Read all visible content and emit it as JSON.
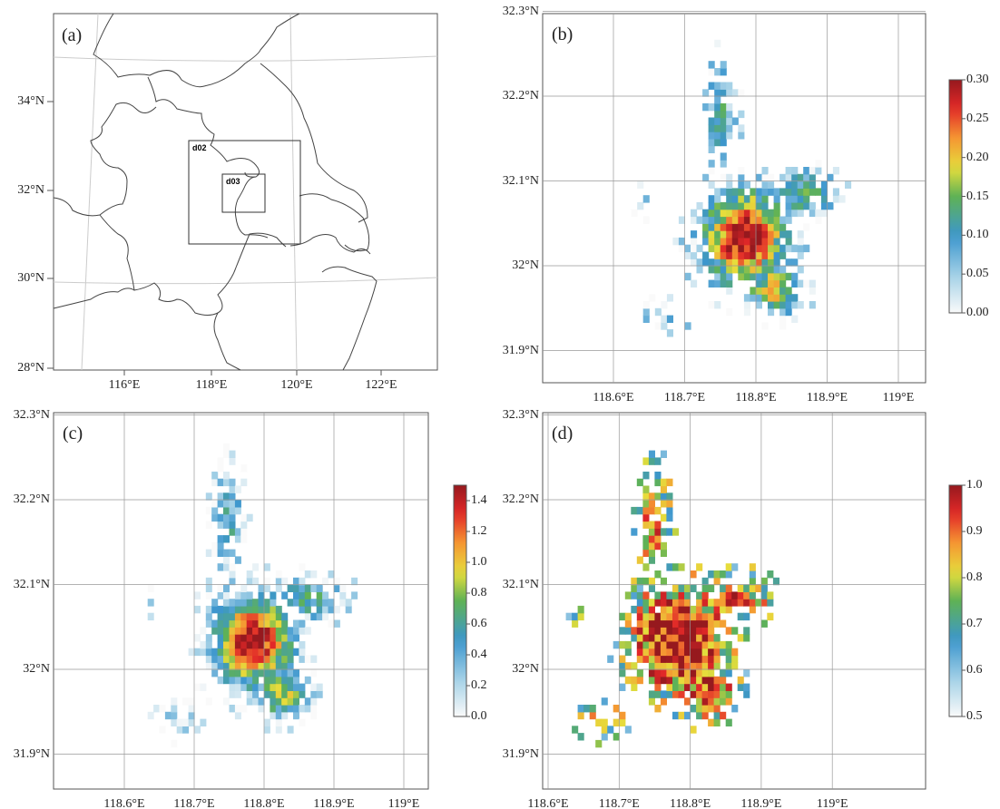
{
  "chart_data": [
    {
      "panel": "(a)",
      "type": "map",
      "title": "(a)",
      "lat_ticks": [
        "34°N",
        "32°N",
        "30°N",
        "28°N"
      ],
      "lon_ticks": [
        "116°E",
        "118°E",
        "120°E",
        "122°E"
      ],
      "domains": [
        "d02",
        "d03"
      ]
    },
    {
      "panel": "(b)",
      "type": "heatmap",
      "title": "(b)",
      "lat_ticks": [
        "32.3°N",
        "32.2°N",
        "32.1°N",
        "32°N",
        "31.9°N"
      ],
      "lon_ticks": [
        "118.6°E",
        "118.7°E",
        "118.8°E",
        "118.9°E",
        "119°E"
      ],
      "xlim": [
        118.53,
        119.04
      ],
      "ylim": [
        31.86,
        32.3
      ],
      "colorbar": {
        "range": [
          0,
          0.3
        ],
        "ticks": [
          "0.30",
          "0.25",
          "0.20",
          "0.15",
          "0.10",
          "0.05",
          "0.00"
        ]
      }
    },
    {
      "panel": "(c)",
      "type": "heatmap",
      "title": "(c)",
      "lat_ticks": [
        "32.3°N",
        "32.2°N",
        "32.1°N",
        "32°N",
        "31.9°N"
      ],
      "lon_ticks": [
        "118.6°E",
        "118.7°E",
        "118.8°E",
        "118.9°E",
        "119°E"
      ],
      "xlim": [
        118.53,
        119.04
      ],
      "ylim": [
        31.86,
        32.3
      ],
      "colorbar": {
        "range": [
          0,
          1.5
        ],
        "ticks": [
          "1.4",
          "1.2",
          "1.0",
          "0.8",
          "0.6",
          "0.4",
          "0.2",
          "0.0"
        ]
      }
    },
    {
      "panel": "(d)",
      "type": "heatmap",
      "title": "(d)",
      "lat_ticks": [
        "32.3°N",
        "32.2°N",
        "32.1°N",
        "32°N",
        "31.9°N"
      ],
      "lon_ticks": [
        "118.6°E",
        "118.7°E",
        "118.8°E",
        "118.9°E",
        "119°E"
      ],
      "xlim": [
        118.53,
        119.04
      ],
      "ylim": [
        31.86,
        32.3
      ],
      "colorbar": {
        "range": [
          0.5,
          1.0
        ],
        "ticks": [
          "1.0",
          "0.9",
          "0.8",
          "0.7",
          "0.6",
          "0.5"
        ]
      }
    }
  ]
}
